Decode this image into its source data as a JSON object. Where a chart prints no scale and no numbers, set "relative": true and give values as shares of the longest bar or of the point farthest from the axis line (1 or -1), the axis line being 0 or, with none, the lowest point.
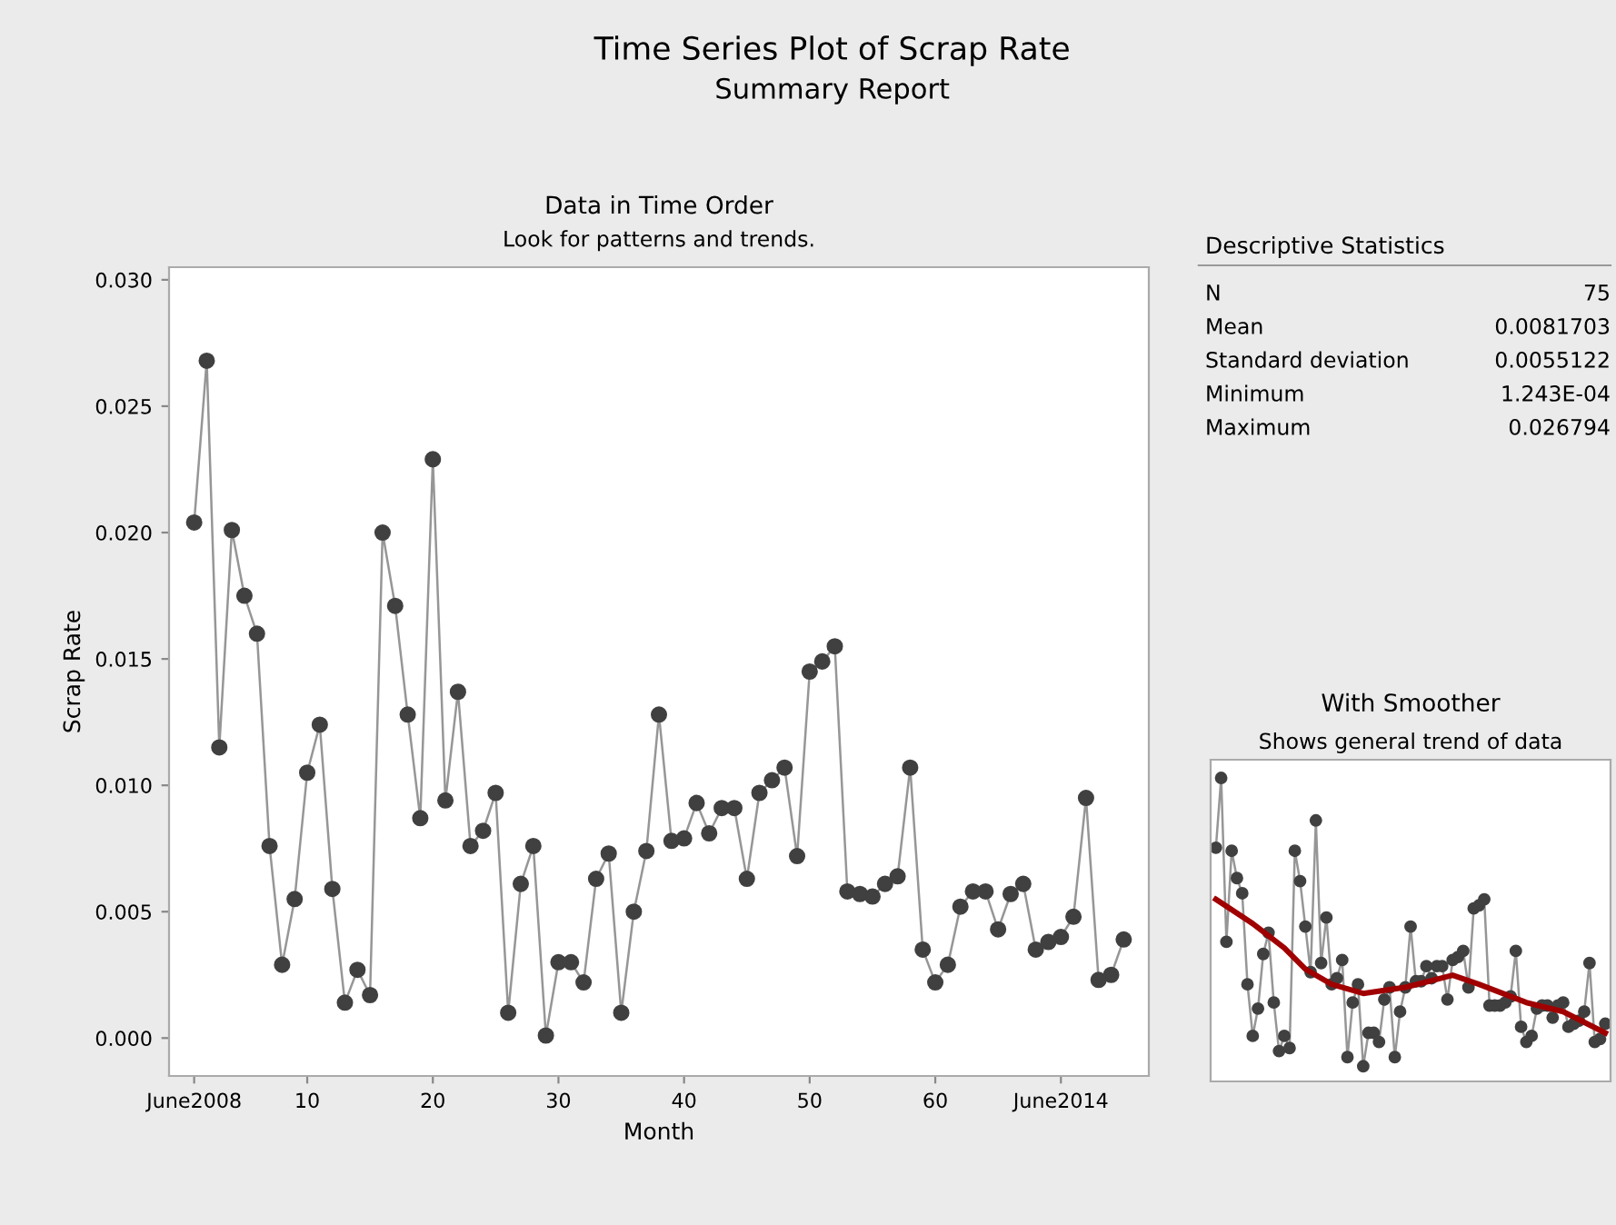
{
  "chart_data": [
    {
      "type": "line",
      "title": "Data in Time Order",
      "subtitle": "Look for patterns and trends.",
      "xlabel": "Month",
      "ylabel": "Scrap Rate",
      "annotations": [
        "Time Series Plot of Scrap Rate",
        "Summary Report"
      ],
      "x": [
        1,
        2,
        3,
        4,
        5,
        6,
        7,
        8,
        9,
        10,
        11,
        12,
        13,
        14,
        15,
        16,
        17,
        18,
        19,
        20,
        21,
        22,
        23,
        24,
        25,
        26,
        27,
        28,
        29,
        30,
        31,
        32,
        33,
        34,
        35,
        36,
        37,
        38,
        39,
        40,
        41,
        42,
        43,
        44,
        45,
        46,
        47,
        48,
        49,
        50,
        51,
        52,
        53,
        54,
        55,
        56,
        57,
        58,
        59,
        60,
        61,
        62,
        63,
        64,
        65,
        66,
        67,
        68,
        69,
        70,
        71,
        72,
        73,
        74,
        75
      ],
      "series": [
        {
          "color": "#404040",
          "values": [
            0.0204,
            0.0268,
            0.0115,
            0.0201,
            0.0175,
            0.016,
            0.0076,
            0.0029,
            0.0055,
            0.0105,
            0.0124,
            0.0059,
            0.0014,
            0.0027,
            0.0017,
            0.02,
            0.0171,
            0.0128,
            0.0087,
            0.0229,
            0.0094,
            0.0137,
            0.0076,
            0.0082,
            0.0097,
            0.001,
            0.0061,
            0.0076,
            0.0001,
            0.003,
            0.003,
            0.0022,
            0.0063,
            0.0073,
            0.001,
            0.005,
            0.0074,
            0.0128,
            0.0078,
            0.0079,
            0.0093,
            0.0081,
            0.0091,
            0.0091,
            0.0063,
            0.0097,
            0.0102,
            0.0107,
            0.0072,
            0.0145,
            0.0149,
            0.0155,
            0.0058,
            0.0057,
            0.0056,
            0.0061,
            0.0064,
            0.0107,
            0.0035,
            0.0022,
            0.0029,
            0.0052,
            0.0058,
            0.0058,
            0.0043,
            0.0057,
            0.0061,
            0.0035,
            0.0038,
            0.004,
            0.0048,
            0.0095,
            0.0023,
            0.0025,
            0.0039
          ]
        }
      ],
      "xlim": [
        -1,
        77
      ],
      "xticks": [
        {
          "value": 1,
          "label": "June2008"
        },
        10,
        20,
        30,
        40,
        50,
        60,
        {
          "value": 70,
          "label": "June2014"
        }
      ],
      "ylim": [
        -0.0015,
        0.0305
      ],
      "yticks": [
        {
          "value": 0,
          "label": "0.000"
        },
        {
          "value": 0.005,
          "label": "0.005"
        },
        {
          "value": 0.01,
          "label": "0.010"
        },
        {
          "value": 0.015,
          "label": "0.015"
        },
        {
          "value": 0.02,
          "label": "0.020"
        },
        {
          "value": 0.025,
          "label": "0.025"
        },
        {
          "value": 0.03,
          "label": "0.030"
        }
      ],
      "marker": "circle",
      "line_style": "solid",
      "grid": false,
      "legend": false
    },
    {
      "type": "line",
      "title": "With Smoother",
      "subtitle": "Shows general trend of data",
      "relative": true,
      "tick_labels": false,
      "marker": "circle",
      "grid": false,
      "legend": false,
      "categories": [
        null,
        null,
        null,
        null,
        null,
        null,
        null,
        null,
        null,
        null,
        null,
        null,
        null,
        null,
        null,
        null,
        null,
        null,
        null,
        null,
        null,
        null,
        null,
        null,
        null,
        null,
        null,
        null,
        null,
        null,
        null,
        null,
        null,
        null,
        null,
        null,
        null,
        null,
        null,
        null,
        null,
        null,
        null,
        null,
        null,
        null,
        null,
        null,
        null,
        null,
        null,
        null,
        null,
        null,
        null,
        null,
        null,
        null,
        null,
        null,
        null,
        null,
        null,
        null,
        null,
        null,
        null,
        null,
        null,
        null,
        null,
        null,
        null,
        null,
        null
      ],
      "series": [
        {
          "color": "#404040",
          "values": [
            0.77,
            1.0,
            0.46,
            0.76,
            0.67,
            0.62,
            0.32,
            0.15,
            0.24,
            0.42,
            0.49,
            0.26,
            0.1,
            0.15,
            0.11,
            0.76,
            0.66,
            0.51,
            0.36,
            0.86,
            0.39,
            0.54,
            0.32,
            0.34,
            0.4,
            0.08,
            0.26,
            0.32,
            0.05,
            0.16,
            0.16,
            0.13,
            0.27,
            0.31,
            0.08,
            0.23,
            0.31,
            0.51,
            0.33,
            0.33,
            0.38,
            0.34,
            0.38,
            0.38,
            0.27,
            0.4,
            0.41,
            0.43,
            0.31,
            0.57,
            0.58,
            0.6,
            0.25,
            0.25,
            0.25,
            0.26,
            0.28,
            0.43,
            0.18,
            0.13,
            0.15,
            0.24,
            0.25,
            0.25,
            0.21,
            0.25,
            0.26,
            0.18,
            0.19,
            0.2,
            0.23,
            0.39,
            0.13,
            0.14,
            0.19
          ]
        },
        {
          "color": "#a00000",
          "marker": "none",
          "values": [
            0.6,
            null,
            null,
            null,
            null,
            null,
            null,
            0.52,
            null,
            null,
            null,
            null,
            null,
            0.44,
            null,
            null,
            null,
            0.37,
            null,
            null,
            null,
            null,
            0.32,
            null,
            null,
            null,
            null,
            null,
            0.29,
            null,
            null,
            null,
            null,
            null,
            null,
            null,
            0.31,
            null,
            null,
            null,
            null,
            null,
            null,
            null,
            null,
            0.35,
            null,
            null,
            null,
            null,
            0.32,
            null,
            null,
            null,
            null,
            null,
            null,
            null,
            null,
            0.26,
            null,
            null,
            null,
            null,
            null,
            null,
            0.23,
            null,
            null,
            null,
            null,
            null,
            null,
            null,
            0.16
          ]
        }
      ]
    },
    {
      "type": "other",
      "title": "Descriptive Statistics",
      "categories": [
        "N",
        "Mean",
        "Standard deviation",
        "Minimum",
        "Maximum"
      ],
      "value_labels": [
        "75",
        "0.0081703",
        "0.0055122",
        "1.243E-04",
        "0.026794"
      ]
    }
  ]
}
